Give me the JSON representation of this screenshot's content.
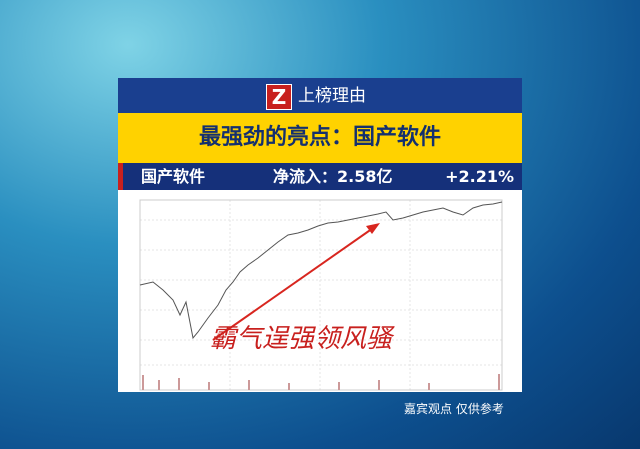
{
  "logo": "Z",
  "header": {
    "title": "上榜理由"
  },
  "headline": "最强劲的亮点：国产软件",
  "info": {
    "sector": "国产软件",
    "inflow": "净流入：2.58亿",
    "change": "+2.21%"
  },
  "annotation": "霸气逞强领风骚",
  "footer": "嘉宾观点 仅供参考"
}
